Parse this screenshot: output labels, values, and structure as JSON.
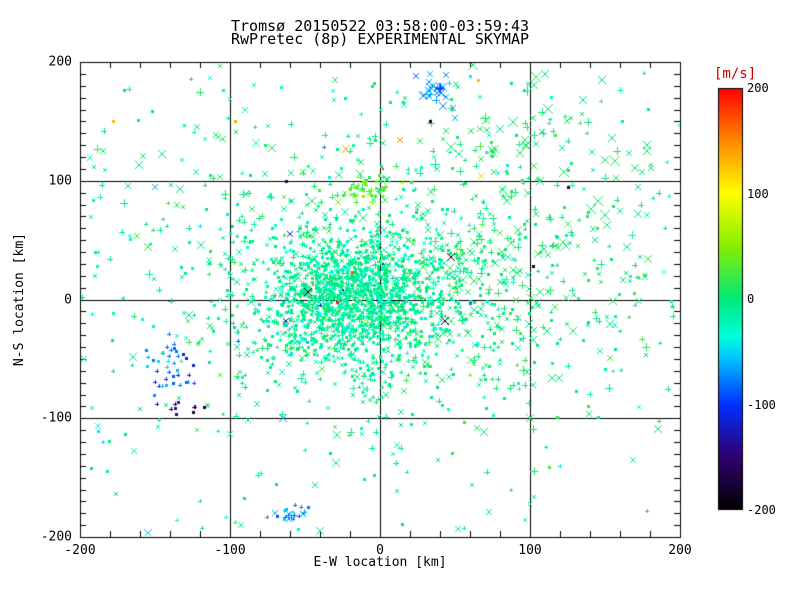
{
  "header": {
    "station": "Tromsø",
    "date": "20150522",
    "time_range": "03:58:00-03:59:43"
  },
  "chart_data": {
    "type": "scatter",
    "title": "Tromsø 20150522 03:58:00-03:59:43",
    "subtitle": "RwPretec (8p) EXPERIMENTAL SKYMAP",
    "xlabel": "E-W location [km]",
    "ylabel": "N-S location [km]",
    "xlim": [
      -200,
      200
    ],
    "ylim": [
      -200,
      200
    ],
    "x_ticks": [
      -200,
      -100,
      0,
      100,
      200
    ],
    "y_ticks": [
      -200,
      -100,
      0,
      100,
      200
    ],
    "x_tick_labels": [
      "-200",
      "-100",
      "0",
      "100",
      "200"
    ],
    "y_tick_labels": [
      "-200",
      "-100",
      "0",
      "100",
      "200"
    ],
    "x_minor_step": 20,
    "y_minor_step": 10,
    "grid_values": [
      -100,
      0,
      100
    ],
    "grid_on": true,
    "axis_color": "#000000",
    "background_color": "#ffffff",
    "colorbar": {
      "label": "[m/s]",
      "label_color": "#c80000",
      "min": -200,
      "max": 200,
      "tick_values": [
        200,
        100,
        0,
        -100,
        -200
      ],
      "tick_labels": [
        "200",
        "100",
        "0",
        "-100",
        "-200"
      ],
      "stops": [
        {
          "v": -200,
          "c": "#000000"
        },
        {
          "v": -150,
          "c": "#300070"
        },
        {
          "v": -100,
          "c": "#0030ff"
        },
        {
          "v": -55,
          "c": "#00c8ff"
        },
        {
          "v": -35,
          "c": "#00ffda"
        },
        {
          "v": 0,
          "c": "#00e878"
        },
        {
          "v": 50,
          "c": "#88ee00"
        },
        {
          "v": 100,
          "c": "#ffff00"
        },
        {
          "v": 150,
          "c": "#ff8800"
        },
        {
          "v": 200,
          "c": "#ff0000"
        }
      ]
    },
    "points_model": {
      "comment": "Doppler velocity skymap: several thousand echoes; generated deterministically from these cluster stats (positions km, v in m/s).",
      "seed": 20150522,
      "clusters": [
        {
          "name": "dense-core",
          "n": 1250,
          "cx": -18,
          "cy": 2,
          "sx": 30,
          "sy": 27,
          "v_mean": -14,
          "v_sd": 13,
          "markers": {
            "dot": 0.45,
            "plus": 0.35,
            "x": 0.2
          },
          "size": [
            2,
            5
          ]
        },
        {
          "name": "inner-halo",
          "n": 560,
          "cx": -5,
          "cy": 6,
          "sx": 55,
          "sy": 47,
          "v_mean": -8,
          "v_sd": 13,
          "markers": {
            "dot": 0.3,
            "plus": 0.4,
            "x": 0.3
          },
          "size": [
            2,
            6
          ]
        },
        {
          "name": "outer-halo",
          "n": 430,
          "cx": 12,
          "cy": 16,
          "sx": 95,
          "sy": 78,
          "v_mean": 0,
          "v_sd": 11,
          "markers": {
            "dot": 0.15,
            "plus": 0.4,
            "x": 0.45
          },
          "size": [
            3,
            8
          ]
        },
        {
          "name": "east-green",
          "n": 150,
          "cx": 78,
          "cy": 22,
          "sx": 52,
          "sy": 55,
          "v_mean": 8,
          "v_sd": 7,
          "markers": {
            "dot": 0.1,
            "plus": 0.3,
            "x": 0.6
          },
          "size": [
            4,
            9
          ]
        },
        {
          "name": "northeast-sparse",
          "n": 62,
          "cx": 122,
          "cy": 128,
          "sx": 50,
          "sy": 42,
          "v_mean": 5,
          "v_sd": 7,
          "markers": {
            "dot": 0.1,
            "plus": 0.2,
            "x": 0.7
          },
          "size": [
            5,
            10
          ]
        },
        {
          "name": "northwest-sparse",
          "n": 26,
          "cx": -120,
          "cy": 122,
          "sx": 48,
          "sy": 40,
          "v_mean": 2,
          "v_sd": 7,
          "markers": {
            "dot": 0.15,
            "plus": 0.25,
            "x": 0.6
          },
          "size": [
            5,
            9
          ]
        },
        {
          "name": "north-blue-patch",
          "n": 26,
          "cx": 38,
          "cy": 172,
          "sx": 9,
          "sy": 9,
          "v_mean": -70,
          "v_sd": 10,
          "markers": {
            "dot": 0.05,
            "plus": 0.15,
            "x": 0.8
          },
          "size": [
            5,
            9
          ]
        },
        {
          "name": "yellow-green-patch",
          "n": 40,
          "cx": -10,
          "cy": 93,
          "sx": 9,
          "sy": 7,
          "v_mean": 38,
          "v_sd": 18,
          "markers": {
            "dot": 0.3,
            "plus": 0.5,
            "x": 0.2
          },
          "size": [
            3,
            6
          ]
        },
        {
          "name": "west-blue-patch",
          "n": 38,
          "cx": -140,
          "cy": -58,
          "sx": 11,
          "sy": 13,
          "v_mean": -82,
          "v_sd": 22,
          "markers": {
            "dot": 0.3,
            "plus": 0.7,
            "x": 0.0
          },
          "size": [
            3,
            5
          ]
        },
        {
          "name": "west-navy-patch",
          "n": 9,
          "cx": -131,
          "cy": -93,
          "sx": 6,
          "sy": 4,
          "v_mean": -152,
          "v_sd": 22,
          "markers": {
            "dot": 0.3,
            "plus": 0.7,
            "x": 0.0
          },
          "size": [
            3,
            4
          ]
        },
        {
          "name": "south-cyan-patch",
          "n": 22,
          "cx": -57,
          "cy": -180,
          "sx": 8,
          "sy": 5,
          "v_mean": -70,
          "v_sd": 14,
          "markers": {
            "dot": 0.2,
            "plus": 0.6,
            "x": 0.2
          },
          "size": [
            3,
            6
          ]
        },
        {
          "name": "background",
          "n": 240,
          "uniform": true,
          "cx": 0,
          "cy": 0,
          "sx": 197,
          "sy": 197,
          "v_mean": -14,
          "v_sd": 17,
          "markers": {
            "dot": 0.3,
            "plus": 0.4,
            "x": 0.3
          },
          "size": [
            2,
            6
          ],
          "thin_southeast": 0.2
        }
      ],
      "outlier_format": [
        "x_km",
        "y_km",
        "v_ms",
        "marker",
        "size_px"
      ],
      "outliers": [
        [
          -23,
          127,
          140,
          "x",
          7
        ],
        [
          13,
          134,
          150,
          "x",
          6
        ],
        [
          67,
          104,
          120,
          "x",
          6
        ],
        [
          -97,
          150,
          135,
          "dot",
          3
        ],
        [
          -178,
          150,
          130,
          "dot",
          3
        ],
        [
          65,
          185,
          130,
          "dot",
          3
        ],
        [
          -29,
          -2,
          190,
          "dot",
          3
        ],
        [
          -19,
          23,
          170,
          "dot",
          3
        ],
        [
          -45,
          12,
          160,
          "dot",
          2
        ],
        [
          -10,
          -18,
          110,
          "dot",
          2
        ],
        [
          2,
          110,
          170,
          "dot",
          2
        ],
        [
          47,
          36,
          -195,
          "x",
          8
        ],
        [
          -48,
          6,
          -195,
          "x",
          7
        ],
        [
          43,
          -18,
          -190,
          "x",
          8
        ],
        [
          102,
          28,
          -185,
          "dot",
          3
        ],
        [
          125,
          95,
          -170,
          "dot",
          3
        ],
        [
          -137,
          -88,
          -180,
          "plus",
          4
        ],
        [
          33,
          150,
          -190,
          "dot",
          3
        ],
        [
          -63,
          100,
          -160,
          "dot",
          3
        ],
        [
          -60,
          55,
          -120,
          "x",
          5
        ],
        [
          -63,
          -18,
          -140,
          "x",
          5
        ],
        [
          -25,
          8,
          -110,
          "dot",
          2
        ],
        [
          -40,
          -5,
          -120,
          "plus",
          4
        ],
        [
          2,
          30,
          -100,
          "dot",
          2
        ],
        [
          -150,
          95,
          -60,
          "x",
          6
        ],
        [
          -95,
          -35,
          -90,
          "plus",
          4
        ],
        [
          60,
          -3,
          -80,
          "dot",
          3
        ],
        [
          33,
          190,
          -60,
          "x",
          6
        ],
        [
          -30,
          185,
          8,
          "x",
          6
        ],
        [
          110,
          190,
          3,
          "x",
          7
        ],
        [
          148,
          185,
          0,
          "x",
          8
        ],
        [
          60,
          188,
          -40,
          "dot",
          3
        ],
        [
          100,
          -100,
          5,
          "x",
          8
        ],
        [
          -65,
          -100,
          -70,
          "x",
          7
        ],
        [
          185,
          -109,
          4,
          "x",
          7
        ],
        [
          -155,
          -197,
          -55,
          "x",
          7
        ],
        [
          -40,
          -195,
          3,
          "x",
          7
        ],
        [
          170,
          -5,
          -50,
          "plus",
          4
        ],
        [
          190,
          60,
          0,
          "plus",
          4
        ],
        [
          -192,
          -12,
          -40,
          "plus",
          4
        ],
        [
          -190,
          40,
          -5,
          "dot",
          3
        ],
        [
          178,
          130,
          2,
          "x",
          7
        ],
        [
          135,
          168,
          -3,
          "x",
          7
        ],
        [
          172,
          95,
          0,
          "x",
          6
        ],
        [
          -120,
          62,
          -45,
          "plus",
          4
        ],
        [
          155,
          -60,
          -30,
          "plus",
          4
        ],
        [
          120,
          -140,
          -40,
          "plus",
          3
        ],
        [
          178,
          -178,
          0,
          "plus",
          3
        ],
        [
          -185,
          -120,
          -50,
          "plus",
          3
        ],
        [
          -120,
          -170,
          -45,
          "plus",
          3
        ],
        [
          -178,
          -60,
          -55,
          "plus",
          3
        ]
      ]
    }
  }
}
